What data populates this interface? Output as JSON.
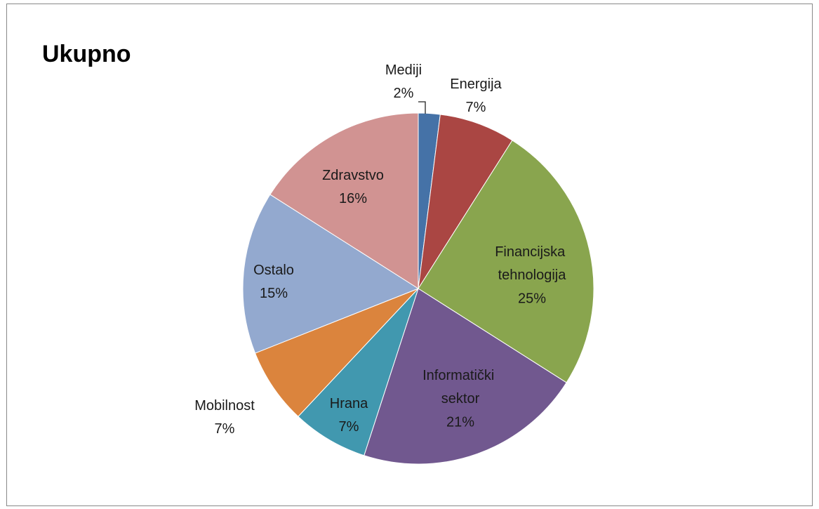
{
  "chart_data": {
    "type": "pie",
    "title": "Ukupno",
    "categories": [
      "Mediji",
      "Energija",
      "Financijska tehnologija",
      "Informatički sektor",
      "Hrana",
      "Mobilnost",
      "Ostalo",
      "Zdravstvo"
    ],
    "values": [
      2,
      7,
      25,
      21,
      7,
      7,
      15,
      16
    ],
    "value_labels": [
      "2%",
      "7%",
      "25%",
      "21%",
      "7%",
      "7%",
      "15%",
      "16%"
    ],
    "colors": [
      "#4572a7",
      "#aa4643",
      "#89a54e",
      "#71588f",
      "#4198af",
      "#db843d",
      "#93a9cf",
      "#d19392"
    ]
  }
}
